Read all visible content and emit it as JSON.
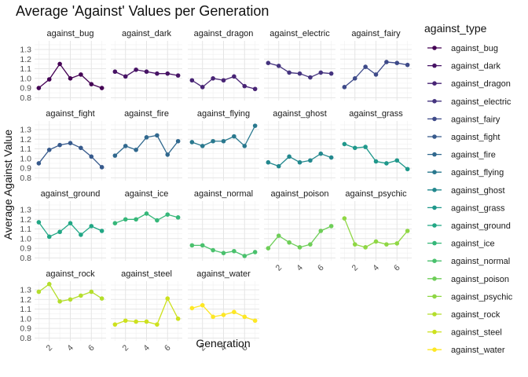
{
  "chart_data": {
    "type": "line",
    "title": "Average 'Against' Values per Generation",
    "xlabel": "Generation",
    "ylabel": "Average Against Value",
    "x": [
      1,
      2,
      3,
      4,
      5,
      6,
      7
    ],
    "x_ticks": [
      2,
      4,
      6
    ],
    "y_ticks": [
      0.8,
      0.9,
      1.0,
      1.1,
      1.2,
      1.3
    ],
    "y_tick_labels": [
      "0.8",
      "0.9",
      "1.0",
      "1.1",
      "1.2",
      "1.3"
    ],
    "xlim": [
      0.6,
      7.4
    ],
    "ylim": [
      0.77,
      1.39
    ],
    "legend_title": "against_type",
    "legend_position": "right",
    "grid": true,
    "facet_columns": 5,
    "series": [
      {
        "name": "against_bug",
        "color": "#440154",
        "values": [
          0.9,
          0.99,
          1.15,
          1.0,
          1.04,
          0.94,
          0.9
        ]
      },
      {
        "name": "against_dark",
        "color": "#471365",
        "values": [
          1.07,
          1.02,
          1.09,
          1.07,
          1.05,
          1.05,
          1.03
        ]
      },
      {
        "name": "against_dragon",
        "color": "#482475",
        "values": [
          0.98,
          0.91,
          1.0,
          0.98,
          1.02,
          0.92,
          0.89
        ]
      },
      {
        "name": "against_electric",
        "color": "#45347f",
        "values": [
          1.16,
          1.13,
          1.06,
          1.05,
          1.01,
          1.06,
          1.05
        ]
      },
      {
        "name": "against_fairy",
        "color": "#3e4a89",
        "values": [
          0.91,
          1.0,
          1.12,
          1.04,
          1.17,
          1.16,
          1.14
        ]
      },
      {
        "name": "against_fight",
        "color": "#375a8c",
        "values": [
          0.95,
          1.09,
          1.14,
          1.16,
          1.11,
          1.02,
          0.91
        ]
      },
      {
        "name": "against_fire",
        "color": "#30688e",
        "values": [
          1.03,
          1.13,
          1.09,
          1.22,
          1.24,
          1.04,
          1.18
        ]
      },
      {
        "name": "against_flying",
        "color": "#29788e",
        "values": [
          1.17,
          1.13,
          1.18,
          1.18,
          1.23,
          1.13,
          1.34
        ]
      },
      {
        "name": "against_ghost",
        "color": "#23888e",
        "values": [
          0.96,
          0.92,
          1.02,
          0.96,
          0.98,
          1.05,
          1.01
        ]
      },
      {
        "name": "against_grass",
        "color": "#1f988b",
        "values": [
          1.15,
          1.11,
          1.12,
          0.97,
          0.95,
          0.98,
          0.89
        ]
      },
      {
        "name": "against_ground",
        "color": "#22a785",
        "values": [
          1.17,
          1.02,
          1.07,
          1.16,
          1.04,
          1.13,
          1.08
        ]
      },
      {
        "name": "against_ice",
        "color": "#35b779",
        "values": [
          1.16,
          1.2,
          1.2,
          1.26,
          1.19,
          1.25,
          1.22
        ]
      },
      {
        "name": "against_normal",
        "color": "#4ac16d",
        "values": [
          0.93,
          0.93,
          0.88,
          0.85,
          0.87,
          0.82,
          0.86
        ]
      },
      {
        "name": "against_poison",
        "color": "#6ece58",
        "values": [
          0.9,
          1.03,
          0.96,
          0.91,
          0.94,
          1.08,
          1.13
        ]
      },
      {
        "name": "against_psychic",
        "color": "#8fd744",
        "values": [
          1.21,
          0.94,
          0.91,
          0.97,
          0.94,
          0.95,
          1.08
        ]
      },
      {
        "name": "against_rock",
        "color": "#b4de2c",
        "values": [
          1.28,
          1.36,
          1.18,
          1.2,
          1.24,
          1.28,
          1.21
        ]
      },
      {
        "name": "against_steel",
        "color": "#cde11d",
        "values": [
          0.94,
          0.98,
          0.97,
          0.97,
          0.94,
          1.21,
          1.0
        ]
      },
      {
        "name": "against_water",
        "color": "#fde725",
        "values": [
          1.11,
          1.14,
          1.02,
          1.04,
          1.07,
          1.02,
          0.98
        ]
      }
    ]
  }
}
